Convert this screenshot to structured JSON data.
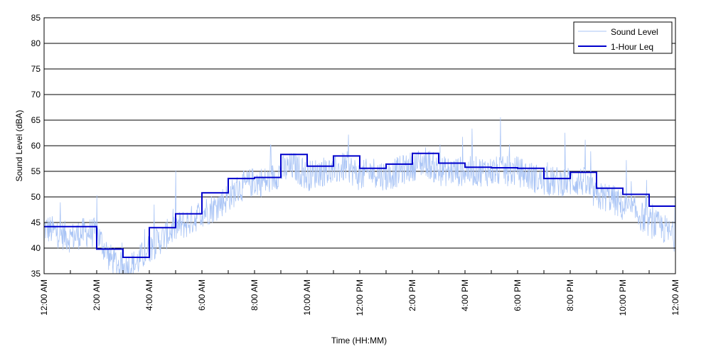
{
  "chart_data": {
    "type": "line",
    "xlabel": "Time (HH:MM)",
    "ylabel": "Sound Level (dBA)",
    "ylim": [
      35,
      85
    ],
    "y_ticks": [
      35,
      40,
      45,
      50,
      55,
      60,
      65,
      70,
      75,
      80,
      85
    ],
    "xlim_hours": [
      0,
      24
    ],
    "x_tick_labels": [
      "12:00 AM",
      "2:00 AM",
      "4:00 AM",
      "6:00 AM",
      "8:00 AM",
      "10:00 AM",
      "12:00 PM",
      "2:00 PM",
      "4:00 PM",
      "6:00 PM",
      "8:00 PM",
      "10:00 PM",
      "12:00 AM"
    ],
    "grid": "horizontal",
    "legend_position": "top-right",
    "series": [
      {
        "name": "Sound Level",
        "style": "thin noisy line",
        "color": "#a9c4f5",
        "x_hours": [
          0,
          0.5,
          1,
          1.5,
          2,
          2.5,
          3,
          3.5,
          4,
          4.5,
          5,
          5.5,
          6,
          6.5,
          7,
          7.5,
          8,
          8.5,
          9,
          9.5,
          10,
          10.5,
          11,
          11.5,
          12,
          12.5,
          13,
          13.5,
          14,
          14.5,
          15,
          15.5,
          16,
          16.5,
          17,
          17.5,
          18,
          18.5,
          19,
          19.5,
          20,
          20.5,
          21,
          21.5,
          22,
          22.5,
          23,
          23.5,
          24
        ],
        "values": [
          44,
          43,
          42,
          43,
          43,
          38,
          36,
          37,
          40,
          42,
          44,
          45,
          47,
          48,
          50,
          52,
          53,
          53,
          55,
          56,
          54,
          55,
          55,
          56,
          54,
          55,
          54,
          55,
          56,
          57,
          55,
          55,
          55,
          55,
          55,
          55,
          55,
          54,
          53,
          53,
          53,
          53,
          50,
          50,
          48,
          47,
          45,
          44,
          42
        ]
      },
      {
        "name": "1-Hour Leq",
        "style": "step",
        "color": "#0000cc",
        "hour_start": [
          0,
          1,
          2,
          3,
          4,
          5,
          6,
          7,
          8,
          9,
          10,
          11,
          12,
          13,
          14,
          15,
          16,
          17,
          18,
          19,
          20,
          21,
          22,
          23
        ],
        "values": [
          44.2,
          44.2,
          39.8,
          38.2,
          44.0,
          46.7,
          50.8,
          53.6,
          53.8,
          58.3,
          56.0,
          58.0,
          55.6,
          56.4,
          58.5,
          56.6,
          55.8,
          55.7,
          55.6,
          53.6,
          54.8,
          51.7,
          50.5,
          48.2
        ]
      }
    ]
  }
}
